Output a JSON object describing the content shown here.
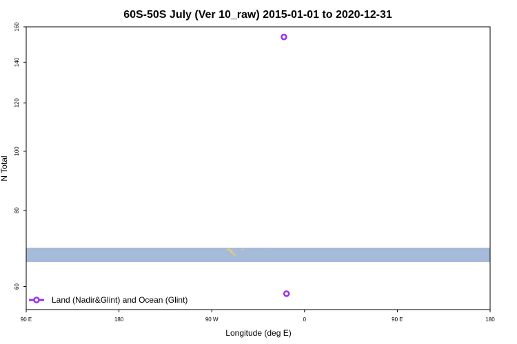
{
  "chart_data": {
    "type": "scatter",
    "title": "60S-50S July (Ver 10_raw)   2015-01-01 to 2020-12-31",
    "xlabel": "Longitude (deg E)",
    "ylabel": "N Total",
    "y_scale": "log",
    "ylim": [
      55,
      160
    ],
    "x_ticks": [
      "90 E",
      "180",
      "90 W",
      "0",
      "90 E",
      "180"
    ],
    "y_ticks": [
      60,
      80,
      100,
      120,
      140,
      160
    ],
    "land_band_color": "#a6bbd9",
    "land_fragment_color": "#f0cd6a",
    "series": [
      {
        "name": "Land (Nadir&Glint) and Ocean (Glint)",
        "color": "#9b30f0",
        "marker": "open-circle",
        "points": [
          {
            "lon": -70,
            "n": 154
          },
          {
            "lon": -68,
            "n": 58.4
          }
        ]
      }
    ]
  }
}
